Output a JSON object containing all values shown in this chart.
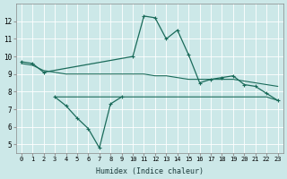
{
  "xlabel": "Humidex (Indice chaleur)",
  "x_ticks": [
    0,
    1,
    2,
    3,
    4,
    5,
    6,
    7,
    8,
    9,
    10,
    11,
    12,
    13,
    14,
    15,
    16,
    17,
    18,
    19,
    20,
    21,
    22,
    23
  ],
  "ylim": [
    4.5,
    13.0
  ],
  "yticks": [
    5,
    6,
    7,
    8,
    9,
    10,
    11,
    12
  ],
  "bg_color": "#cce8e8",
  "line_color": "#1a6b5a",
  "upper_zigzag_x": [
    0,
    1,
    2,
    10,
    11,
    12,
    13,
    14,
    15,
    16,
    17,
    18,
    19,
    20,
    21,
    22,
    23
  ],
  "upper_zigzag_y": [
    9.7,
    9.6,
    9.1,
    10.0,
    12.3,
    12.2,
    11.0,
    11.5,
    10.1,
    8.5,
    8.7,
    8.8,
    8.9,
    8.4,
    8.3,
    7.9,
    7.5
  ],
  "upper_smooth_x": [
    0,
    1,
    2,
    3,
    4,
    5,
    6,
    7,
    8,
    9,
    10,
    11,
    12,
    13,
    14,
    15,
    16,
    17,
    18,
    19,
    20,
    21,
    22,
    23
  ],
  "upper_smooth_y": [
    9.6,
    9.5,
    9.2,
    9.1,
    9.0,
    9.0,
    9.0,
    9.0,
    9.0,
    9.0,
    9.0,
    9.0,
    8.9,
    8.9,
    8.8,
    8.7,
    8.7,
    8.7,
    8.7,
    8.7,
    8.6,
    8.5,
    8.4,
    8.3
  ],
  "lower_zigzag_x": [
    3,
    4,
    5,
    6,
    7,
    8,
    9
  ],
  "lower_zigzag_y": [
    7.7,
    7.2,
    6.5,
    5.9,
    4.8,
    7.3,
    7.7
  ],
  "lower_flat_x": [
    3,
    4,
    5,
    6,
    7,
    8,
    9,
    10,
    11,
    12,
    13,
    14,
    15,
    16,
    17,
    18,
    19,
    20,
    21,
    22,
    23
  ],
  "lower_flat_y": [
    7.7,
    7.7,
    7.7,
    7.7,
    7.7,
    7.7,
    7.7,
    7.7,
    7.7,
    7.7,
    7.7,
    7.7,
    7.7,
    7.7,
    7.7,
    7.7,
    7.7,
    7.7,
    7.7,
    7.7,
    7.5
  ],
  "upper_marker_x": [
    0,
    1,
    2,
    10,
    11,
    12,
    13,
    14,
    15,
    16,
    17,
    18,
    19,
    20,
    21,
    22,
    23
  ],
  "upper_marker_y": [
    9.7,
    9.6,
    9.1,
    10.0,
    12.3,
    12.2,
    11.0,
    11.5,
    10.1,
    8.5,
    8.7,
    8.8,
    8.9,
    8.4,
    8.3,
    7.9,
    7.5
  ],
  "lower_marker_x": [
    3,
    4,
    5,
    6,
    7,
    8,
    9
  ],
  "lower_marker_y": [
    7.7,
    7.2,
    6.5,
    5.9,
    4.8,
    7.3,
    7.7
  ]
}
